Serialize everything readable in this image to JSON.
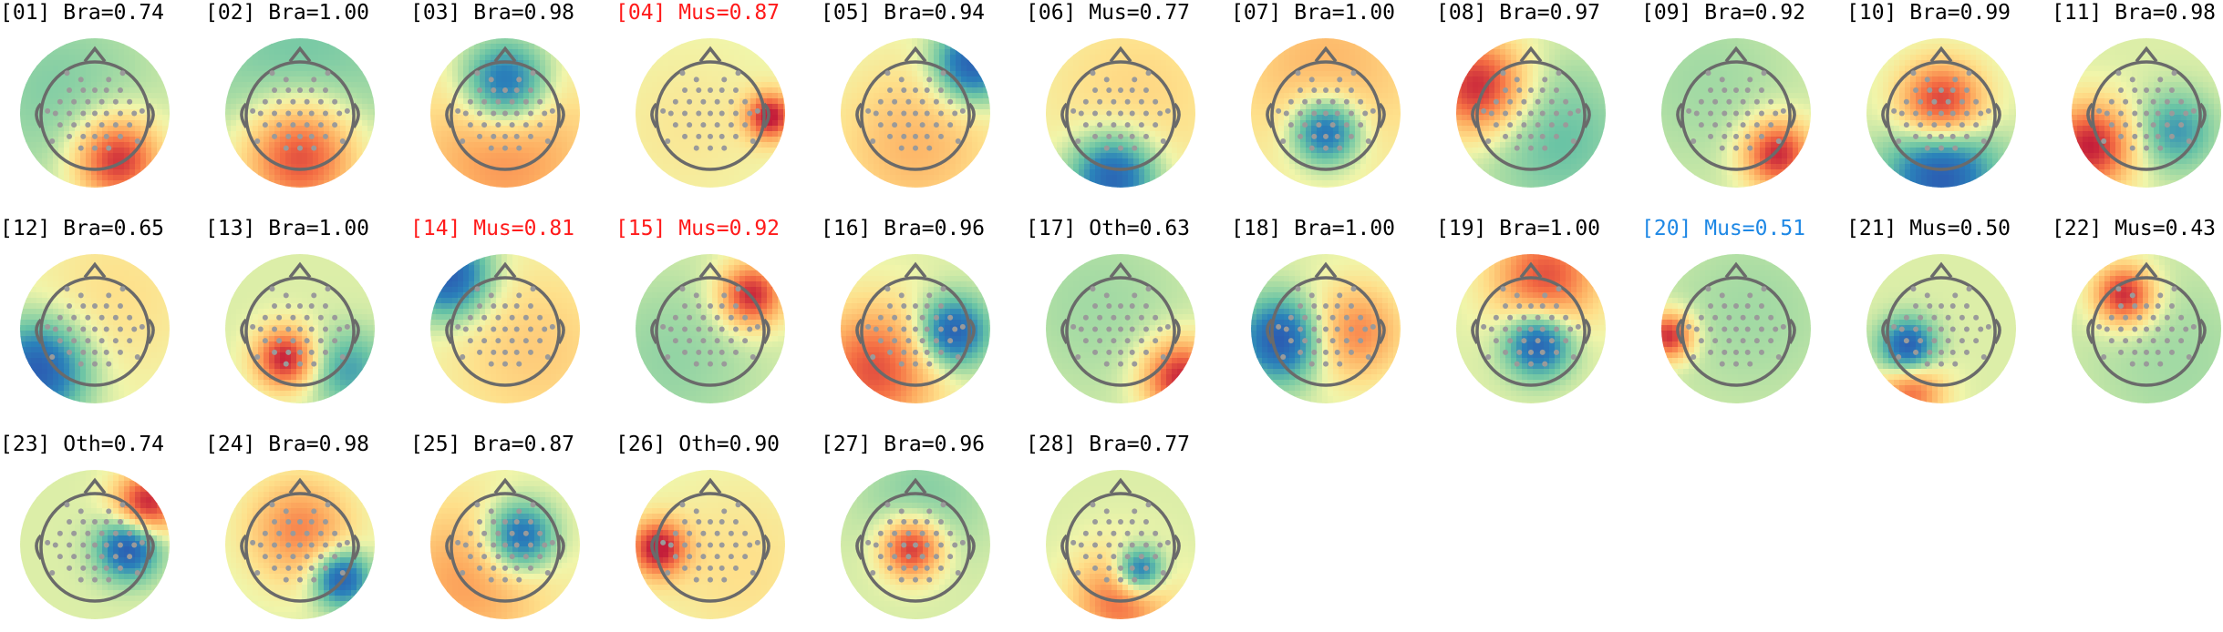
{
  "colors": {
    "default_label": "#000000",
    "muscle_flag": "#ff1a1a",
    "uncertain_flag": "#1e88e5",
    "electrode": "#9a9a9a",
    "head_outline": "#6a6a6a"
  },
  "components": [
    {
      "label": "[01] Bra=0.74",
      "color": "default_label"
    },
    {
      "label": "[02] Bra=1.00",
      "color": "default_label"
    },
    {
      "label": "[03] Bra=0.98",
      "color": "default_label"
    },
    {
      "label": "[04] Mus=0.87",
      "color": "muscle_flag"
    },
    {
      "label": "[05] Bra=0.94",
      "color": "default_label"
    },
    {
      "label": "[06] Mus=0.77",
      "color": "default_label"
    },
    {
      "label": "[07] Bra=1.00",
      "color": "default_label"
    },
    {
      "label": "[08] Bra=0.97",
      "color": "default_label"
    },
    {
      "label": "[09] Bra=0.92",
      "color": "default_label"
    },
    {
      "label": "[10] Bra=0.99",
      "color": "default_label"
    },
    {
      "label": "[11] Bra=0.98",
      "color": "default_label"
    },
    {
      "label": "[12] Bra=0.65",
      "color": "default_label"
    },
    {
      "label": "[13] Bra=1.00",
      "color": "default_label"
    },
    {
      "label": "[14] Mus=0.81",
      "color": "muscle_flag"
    },
    {
      "label": "[15] Mus=0.92",
      "color": "muscle_flag"
    },
    {
      "label": "[16] Bra=0.96",
      "color": "default_label"
    },
    {
      "label": "[17] Oth=0.63",
      "color": "default_label"
    },
    {
      "label": "[18] Bra=1.00",
      "color": "default_label"
    },
    {
      "label": "[19] Bra=1.00",
      "color": "default_label"
    },
    {
      "label": "[20] Mus=0.51",
      "color": "uncertain_flag"
    },
    {
      "label": "[21] Mus=0.50",
      "color": "default_label"
    },
    {
      "label": "[22] Mus=0.43",
      "color": "default_label"
    },
    {
      "label": "[23] Oth=0.74",
      "color": "default_label"
    },
    {
      "label": "[24] Bra=0.98",
      "color": "default_label"
    },
    {
      "label": "[25] Bra=0.87",
      "color": "default_label"
    },
    {
      "label": "[26] Oth=0.90",
      "color": "default_label"
    },
    {
      "label": "[27] Bra=0.96",
      "color": "default_label"
    },
    {
      "label": "[28] Bra=0.77",
      "color": "default_label"
    }
  ]
}
